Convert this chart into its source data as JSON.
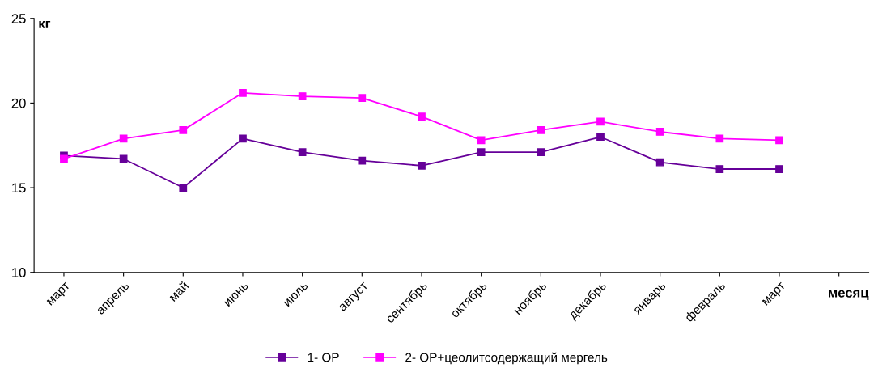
{
  "chart_data": {
    "type": "line",
    "ylabel": "кг",
    "xlabel": "месяц",
    "categories": [
      "март",
      "апрель",
      "май",
      "июнь",
      "июль",
      "август",
      "сентябрь",
      "октябрь",
      "ноябрь",
      "декабрь",
      "январь",
      "февраль",
      "март",
      null
    ],
    "series": [
      {
        "name": "1- ОР",
        "color": "#660099",
        "values": [
          16.9,
          16.7,
          15.0,
          17.9,
          17.1,
          16.6,
          16.3,
          17.1,
          17.1,
          18.0,
          16.5,
          16.1,
          16.1,
          null
        ]
      },
      {
        "name": "2- ОР+цеолитсодержащий мергель",
        "color": "#ff00ff",
        "values": [
          16.7,
          17.9,
          18.4,
          20.6,
          20.4,
          20.3,
          19.2,
          17.8,
          18.4,
          18.9,
          18.3,
          17.9,
          17.8,
          null
        ]
      }
    ],
    "ylim": [
      10,
      25
    ],
    "yticks": [
      10,
      15,
      20,
      25
    ],
    "grid": false,
    "legend": "bottom",
    "marker": "square",
    "line_style": "solid"
  }
}
